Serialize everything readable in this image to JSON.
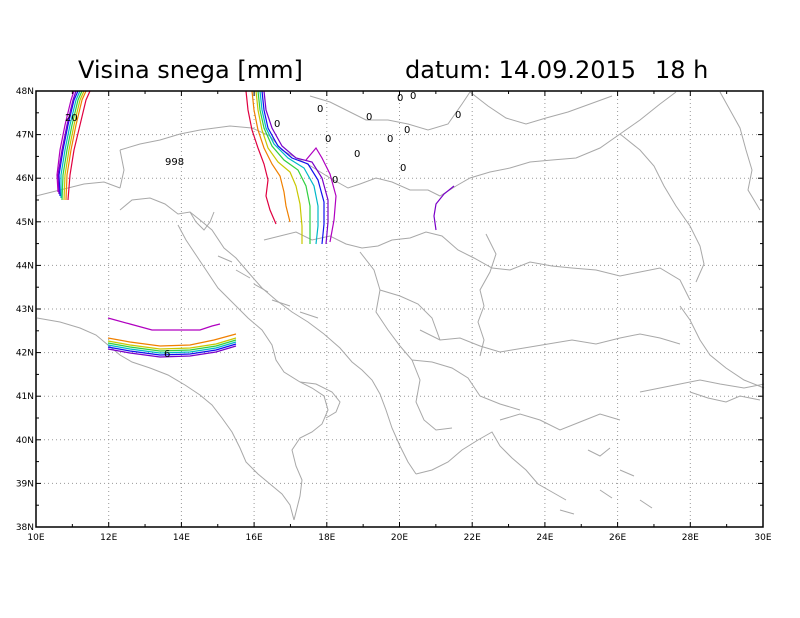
{
  "title": {
    "variable": "Visina snega [mm]",
    "date": "datum: 14.09.2015",
    "hour": "18 h"
  },
  "axes": {
    "x_ticks": [
      "10E",
      "12E",
      "14E",
      "16E",
      "18E",
      "20E",
      "22E",
      "24E",
      "26E",
      "28E",
      "30E"
    ],
    "y_ticks": [
      "48N",
      "47N",
      "46N",
      "45N",
      "44N",
      "43N",
      "42N",
      "41N",
      "40N",
      "39N",
      "38N"
    ],
    "lon_range": [
      10,
      30
    ],
    "lat_range": [
      38,
      48
    ]
  },
  "contour_labels": [
    "20",
    "998",
    "0",
    "0",
    "0",
    "0",
    "0",
    "0",
    "0",
    "0",
    "0",
    "0",
    "0",
    "0",
    "0",
    "6"
  ],
  "colors": {
    "coastline": "#a8a8a8",
    "grid": "#9a9a9a",
    "contour_magenta": "#b000c0",
    "contour_purple": "#7a00c8",
    "contour_blue": "#1010f0",
    "contour_cyan": "#00b8c8",
    "contour_green": "#30d040",
    "contour_yellow": "#c8c800",
    "contour_orange": "#f08000",
    "contour_red": "#e00040"
  }
}
